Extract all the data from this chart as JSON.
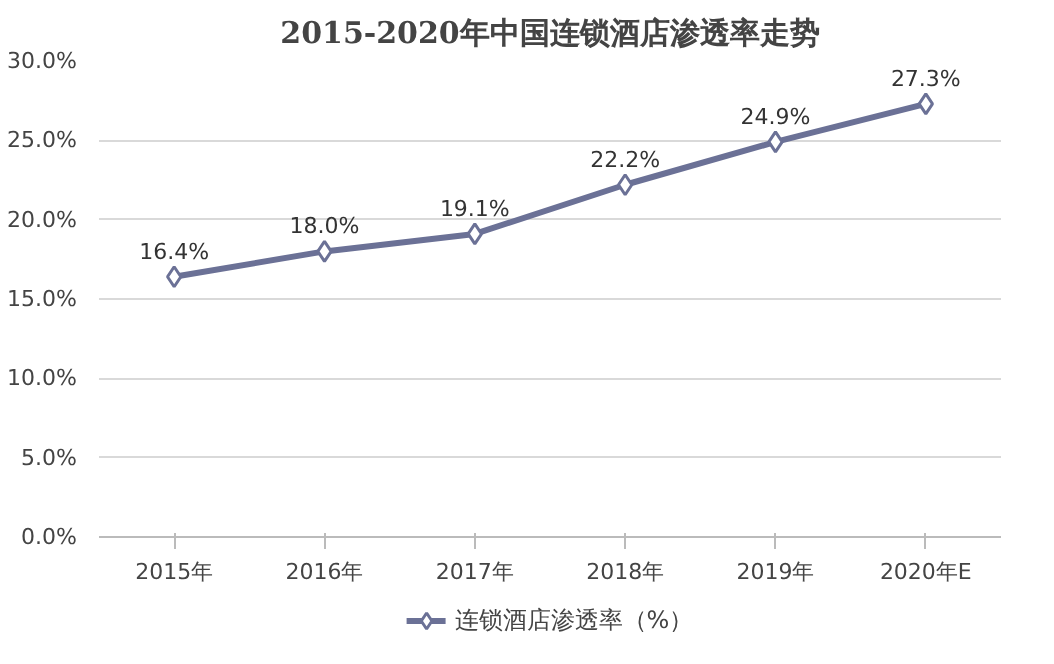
{
  "chart_data": {
    "type": "line",
    "title": "2015-2020年中国连锁酒店渗透率走势",
    "categories": [
      "2015年",
      "2016年",
      "2017年",
      "2018年",
      "2019年",
      "2020年E"
    ],
    "series": [
      {
        "name": "连锁酒店渗透率（%）",
        "color": "#6b7196",
        "values": [
          16.4,
          18.0,
          19.1,
          22.2,
          24.9,
          27.3
        ],
        "value_labels": [
          "16.4%",
          "18.0%",
          "19.1%",
          "22.2%",
          "24.9%",
          "27.3%"
        ]
      }
    ],
    "ylim": [
      0,
      30
    ],
    "yticks": [
      {
        "value": 0,
        "label": "0.0%"
      },
      {
        "value": 5,
        "label": "5.0%"
      },
      {
        "value": 10,
        "label": "10.0%"
      },
      {
        "value": 15,
        "label": "15.0%"
      },
      {
        "value": 20,
        "label": "20.0%"
      },
      {
        "value": 25,
        "label": "25.0%"
      },
      {
        "value": 30,
        "label": "30.0%"
      }
    ],
    "grid": "y",
    "legend": "bottom",
    "marker": "diamond",
    "line_style": "solid"
  }
}
